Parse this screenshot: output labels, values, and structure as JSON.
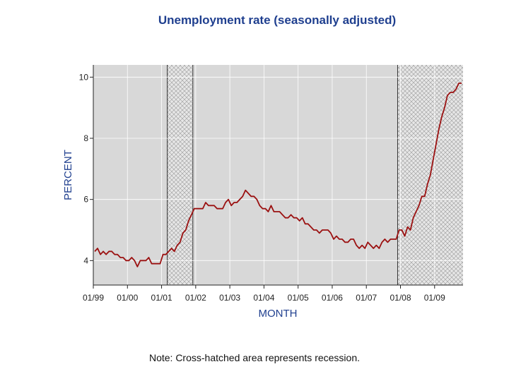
{
  "chart_data": {
    "type": "line",
    "title": "Unemployment rate (seasonally adjusted)",
    "xlabel": "MONTH",
    "ylabel": "PERCENT",
    "ylim": [
      3.2,
      10.4
    ],
    "yticks": [
      4,
      6,
      8,
      10
    ],
    "xticks": [
      "01/99",
      "01/00",
      "01/01",
      "01/02",
      "01/03",
      "01/04",
      "01/05",
      "01/06",
      "01/07",
      "01/08",
      "01/09"
    ],
    "x_start": "01/99",
    "grid": true,
    "colors": {
      "line": "#9b1111",
      "plot_bg": "#d8d8d8",
      "title": "#1f3f8f",
      "recession_hatch": "#999999"
    },
    "recessions": [
      {
        "start": "03/01",
        "end": "11/01"
      },
      {
        "start": "12/07",
        "end": "10/09"
      }
    ],
    "series": [
      {
        "values": [
          4.3,
          4.4,
          4.2,
          4.3,
          4.2,
          4.3,
          4.3,
          4.2,
          4.2,
          4.1,
          4.1,
          4.0,
          4.0,
          4.1,
          4.0,
          3.8,
          4.0,
          4.0,
          4.0,
          4.1,
          3.9,
          3.9,
          3.9,
          3.9,
          4.2,
          4.2,
          4.3,
          4.4,
          4.3,
          4.5,
          4.6,
          4.9,
          5.0,
          5.3,
          5.5,
          5.7,
          5.7,
          5.7,
          5.7,
          5.9,
          5.8,
          5.8,
          5.8,
          5.7,
          5.7,
          5.7,
          5.9,
          6.0,
          5.8,
          5.9,
          5.9,
          6.0,
          6.1,
          6.3,
          6.2,
          6.1,
          6.1,
          6.0,
          5.8,
          5.7,
          5.7,
          5.6,
          5.8,
          5.6,
          5.6,
          5.6,
          5.5,
          5.4,
          5.4,
          5.5,
          5.4,
          5.4,
          5.3,
          5.4,
          5.2,
          5.2,
          5.1,
          5.0,
          5.0,
          4.9,
          5.0,
          5.0,
          5.0,
          4.9,
          4.7,
          4.8,
          4.7,
          4.7,
          4.6,
          4.6,
          4.7,
          4.7,
          4.5,
          4.4,
          4.5,
          4.4,
          4.6,
          4.5,
          4.4,
          4.5,
          4.4,
          4.6,
          4.7,
          4.6,
          4.7,
          4.7,
          4.7,
          5.0,
          5.0,
          4.8,
          5.1,
          5.0,
          5.4,
          5.6,
          5.8,
          6.1,
          6.1,
          6.5,
          6.8,
          7.3,
          7.8,
          8.3,
          8.7,
          9.0,
          9.4,
          9.5,
          9.5,
          9.6,
          9.8,
          9.8
        ]
      }
    ]
  },
  "note": "Note: Cross-hatched area represents recession."
}
